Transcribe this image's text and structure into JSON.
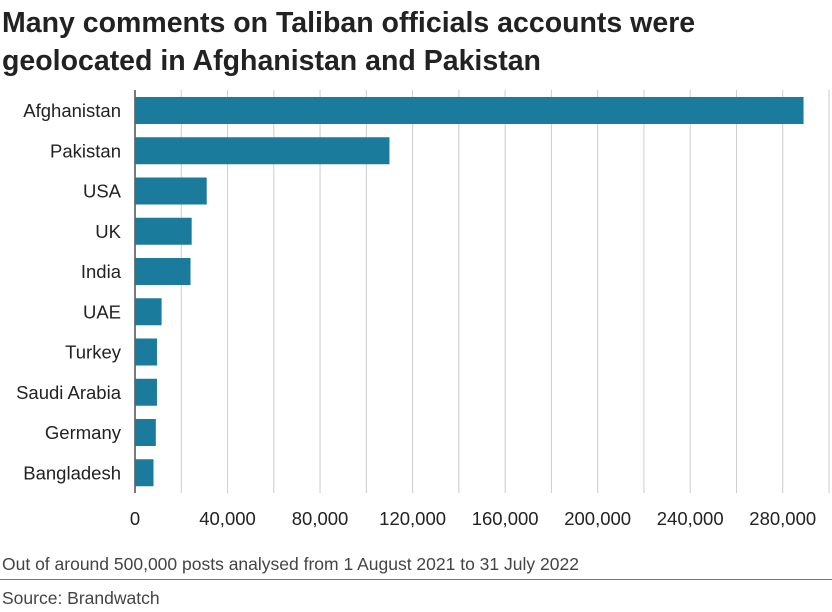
{
  "title": "Many comments on Taliban officials accounts were geolocated in Afghanistan and Pakistan",
  "note": "Out of around 500,000 posts analysed from 1 August 2021 to 31 July 2022",
  "source": "Source: Brandwatch",
  "colors": {
    "bar": "#1a7b9c",
    "grid": "#cccccc",
    "axis": "#222222"
  },
  "chart_data": {
    "type": "bar",
    "orientation": "horizontal",
    "categories": [
      "Afghanistan",
      "Pakistan",
      "USA",
      "UK",
      "India",
      "UAE",
      "Turkey",
      "Saudi Arabia",
      "Germany",
      "Bangladesh"
    ],
    "values": [
      289000,
      110000,
      31000,
      24500,
      24000,
      11500,
      9500,
      9500,
      9000,
      8000
    ],
    "x_ticks": [
      0,
      40000,
      80000,
      120000,
      160000,
      200000,
      240000,
      280000
    ],
    "x_tick_labels": [
      "0",
      "40,000",
      "80,000",
      "120,000",
      "160,000",
      "200,000",
      "240,000",
      "280,000"
    ],
    "xlim": [
      0,
      300000
    ],
    "grid": true
  }
}
